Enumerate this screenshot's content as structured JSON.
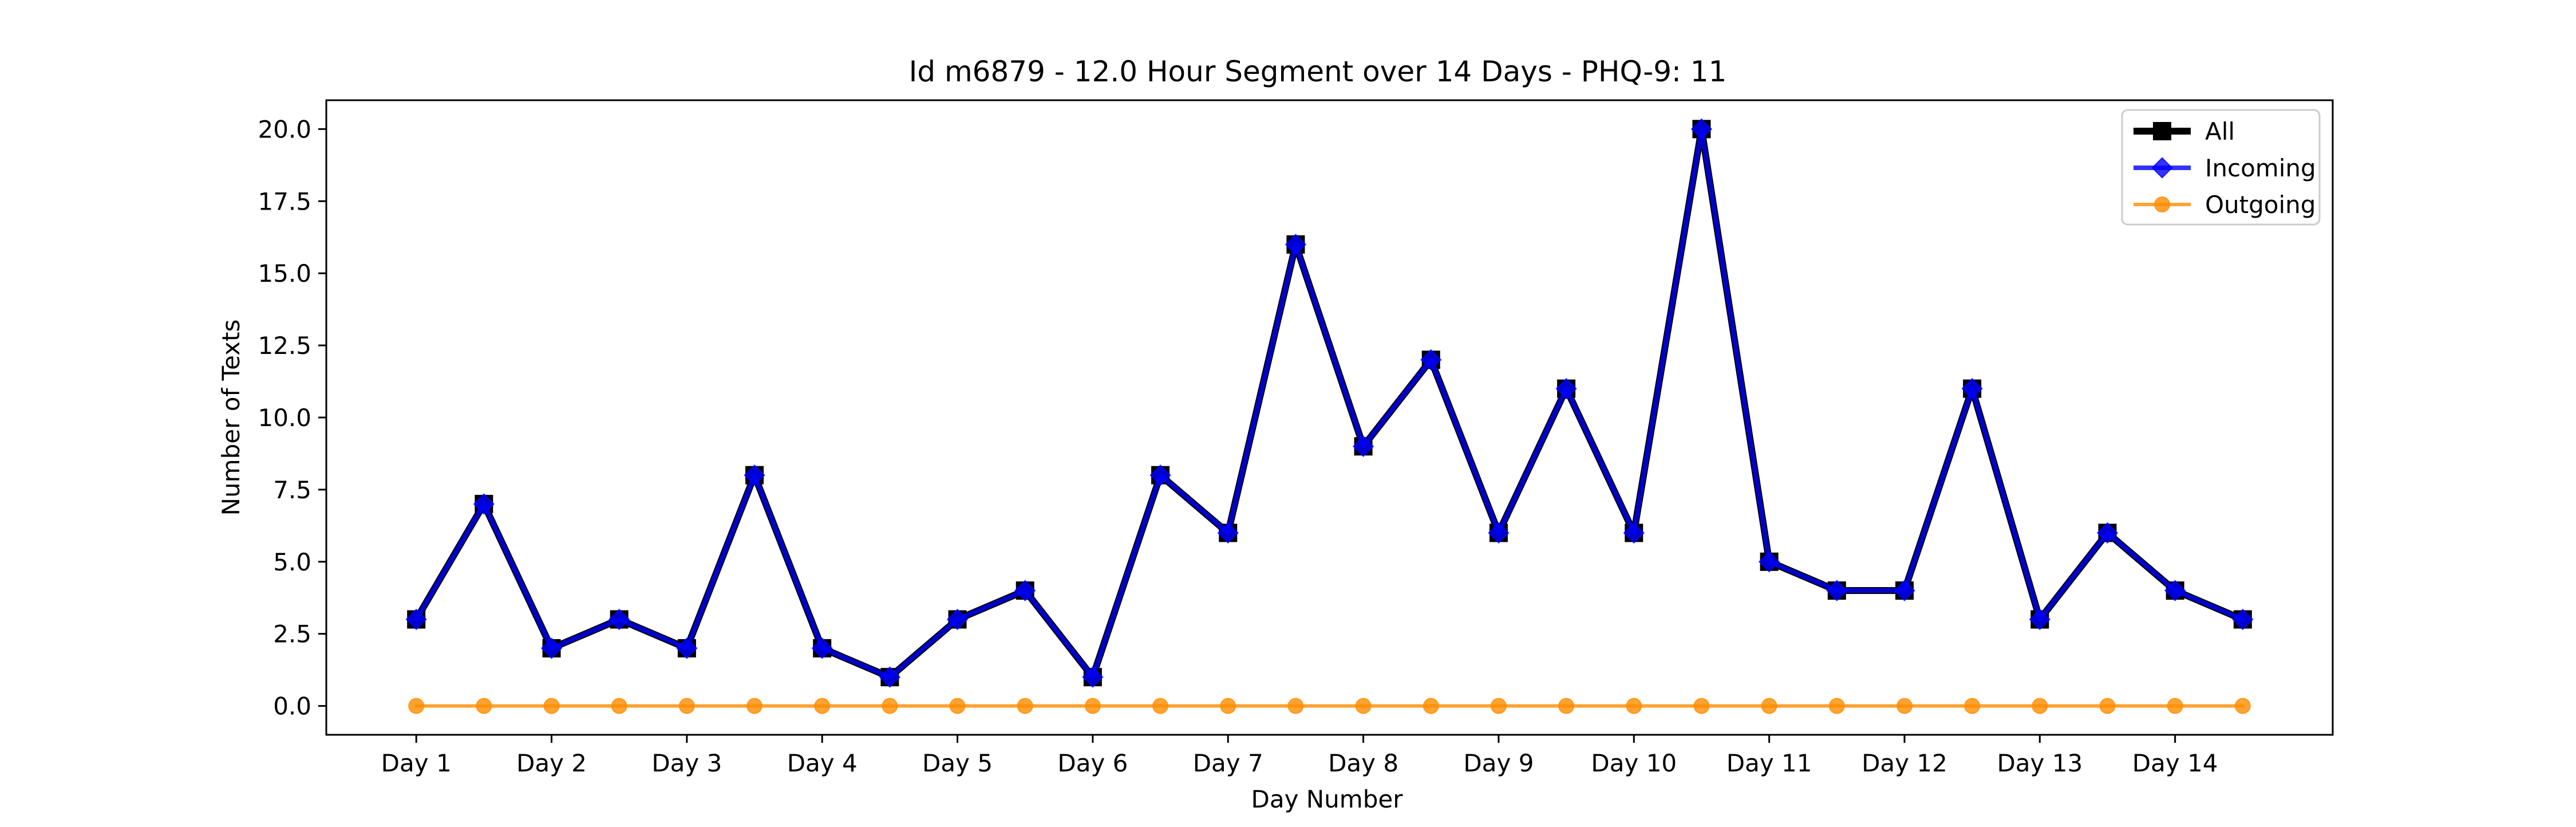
{
  "chart_data": {
    "type": "line",
    "title": "Id m6879 - 12.0 Hour Segment over 14 Days - PHQ-9: 11",
    "xlabel": "Day Number",
    "ylabel": "Number of Texts",
    "x": [
      1,
      1.5,
      2,
      2.5,
      3,
      3.5,
      4,
      4.5,
      5,
      5.5,
      6,
      6.5,
      7,
      7.5,
      8,
      8.5,
      9,
      9.5,
      10,
      10.5,
      11,
      11.5,
      12,
      12.5,
      13,
      13.5,
      14,
      14.5
    ],
    "xticks": [
      {
        "value": 1,
        "label": "Day 1"
      },
      {
        "value": 2,
        "label": "Day 2"
      },
      {
        "value": 3,
        "label": "Day 3"
      },
      {
        "value": 4,
        "label": "Day 4"
      },
      {
        "value": 5,
        "label": "Day 5"
      },
      {
        "value": 6,
        "label": "Day 6"
      },
      {
        "value": 7,
        "label": "Day 7"
      },
      {
        "value": 8,
        "label": "Day 8"
      },
      {
        "value": 9,
        "label": "Day 9"
      },
      {
        "value": 10,
        "label": "Day 10"
      },
      {
        "value": 11,
        "label": "Day 11"
      },
      {
        "value": 12,
        "label": "Day 12"
      },
      {
        "value": 13,
        "label": "Day 13"
      },
      {
        "value": 14,
        "label": "Day 14"
      }
    ],
    "yticks": [
      {
        "value": 0,
        "label": "0.0"
      },
      {
        "value": 2.5,
        "label": "2.5"
      },
      {
        "value": 5,
        "label": "5.0"
      },
      {
        "value": 7.5,
        "label": "7.5"
      },
      {
        "value": 10,
        "label": "10.0"
      },
      {
        "value": 12.5,
        "label": "12.5"
      },
      {
        "value": 15,
        "label": "15.0"
      },
      {
        "value": 17.5,
        "label": "17.5"
      },
      {
        "value": 20,
        "label": "20.0"
      }
    ],
    "xlim": [
      0.335,
      15.165
    ],
    "ylim": [
      -1.0,
      21.0
    ],
    "grid": false,
    "legend_position": "top-right",
    "series": [
      {
        "name": "All",
        "color": "#000000",
        "marker": "square",
        "values": [
          3,
          7,
          2,
          3,
          2,
          8,
          2,
          1,
          3,
          4,
          1,
          8,
          6,
          16,
          9,
          12,
          6,
          11,
          6,
          20,
          5,
          4,
          4,
          11,
          3,
          6,
          4,
          3
        ]
      },
      {
        "name": "Incoming",
        "color": "#0000ff",
        "marker": "diamond",
        "values": [
          3,
          7,
          2,
          3,
          2,
          8,
          2,
          1,
          3,
          4,
          1,
          8,
          6,
          16,
          9,
          12,
          6,
          11,
          6,
          20,
          5,
          4,
          4,
          11,
          3,
          6,
          4,
          3
        ]
      },
      {
        "name": "Outgoing",
        "color": "#ff8c00",
        "marker": "circle",
        "values": [
          0,
          0,
          0,
          0,
          0,
          0,
          0,
          0,
          0,
          0,
          0,
          0,
          0,
          0,
          0,
          0,
          0,
          0,
          0,
          0,
          0,
          0,
          0,
          0,
          0,
          0,
          0,
          0
        ]
      }
    ]
  }
}
